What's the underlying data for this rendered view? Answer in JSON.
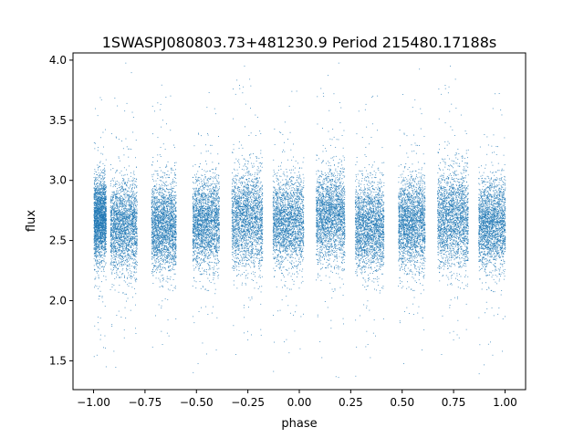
{
  "chart_data": {
    "type": "scatter",
    "title": "1SWASPJ080803.73+481230.9 Period 215480.17188s",
    "xlabel": "phase",
    "ylabel": "flux",
    "xlim": [
      -1.1,
      1.1
    ],
    "ylim": [
      1.26,
      4.06
    ],
    "xticks": [
      -1.0,
      -0.75,
      -0.5,
      -0.25,
      0.0,
      0.25,
      0.5,
      0.75,
      1.0
    ],
    "xtick_labels": [
      "−1.00",
      "−0.75",
      "−0.50",
      "−0.25",
      "0.00",
      "0.25",
      "0.50",
      "0.75",
      "1.00"
    ],
    "yticks": [
      1.5,
      2.0,
      2.5,
      3.0,
      3.5,
      4.0
    ],
    "ytick_labels": [
      "1.5",
      "2.0",
      "2.5",
      "3.0",
      "3.5",
      "4.0"
    ],
    "grid": false,
    "marker_color": "#1f77b4",
    "series": [
      {
        "clusters": [
          {
            "x_range": [
              -1.0,
              -0.94
            ],
            "y_center": 2.68,
            "y_spread": 0.22
          },
          {
            "x_range": [
              -0.92,
              -0.79
            ],
            "y_center": 2.62,
            "y_spread": 0.24
          },
          {
            "x_range": [
              -0.72,
              -0.6
            ],
            "y_center": 2.62,
            "y_spread": 0.24
          },
          {
            "x_range": [
              -0.52,
              -0.39
            ],
            "y_center": 2.65,
            "y_spread": 0.24
          },
          {
            "x_range": [
              -0.33,
              -0.18
            ],
            "y_center": 2.68,
            "y_spread": 0.26
          },
          {
            "x_range": [
              -0.13,
              0.02
            ],
            "y_center": 2.66,
            "y_spread": 0.24
          },
          {
            "x_range": [
              0.08,
              0.22
            ],
            "y_center": 2.7,
            "y_spread": 0.24
          },
          {
            "x_range": [
              0.27,
              0.41
            ],
            "y_center": 2.62,
            "y_spread": 0.24
          },
          {
            "x_range": [
              0.48,
              0.61
            ],
            "y_center": 2.65,
            "y_spread": 0.24
          },
          {
            "x_range": [
              0.67,
              0.82
            ],
            "y_center": 2.68,
            "y_spread": 0.26
          },
          {
            "x_range": [
              0.87,
              1.0
            ],
            "y_center": 2.64,
            "y_spread": 0.24
          }
        ]
      }
    ]
  }
}
